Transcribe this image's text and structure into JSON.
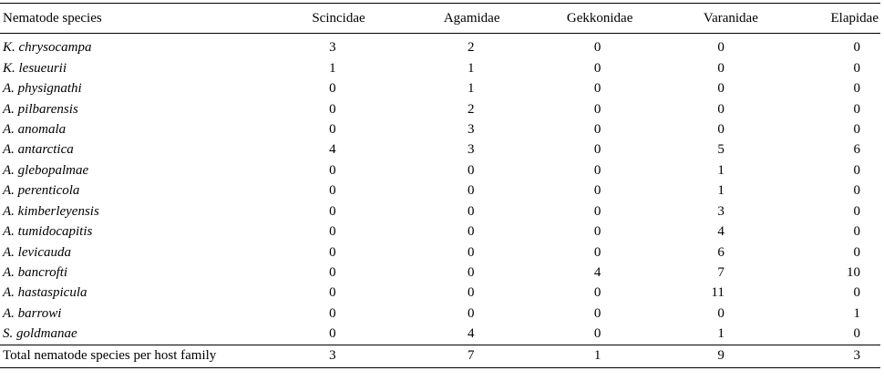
{
  "table": {
    "headers": [
      "Nematode species",
      "Scincidae",
      "Agamidae",
      "Gekkonidae",
      "Varanidae",
      "Elapidae"
    ],
    "rows": [
      {
        "species": "K. chrysocampa",
        "values": [
          "3",
          "2",
          "0",
          "0",
          "0"
        ]
      },
      {
        "species": "K. lesueurii",
        "values": [
          "1",
          "1",
          "0",
          "0",
          "0"
        ]
      },
      {
        "species": "A. physignathi",
        "values": [
          "0",
          "1",
          "0",
          "0",
          "0"
        ]
      },
      {
        "species": "A. pilbarensis",
        "values": [
          "0",
          "2",
          "0",
          "0",
          "0"
        ]
      },
      {
        "species": "A. anomala",
        "values": [
          "0",
          "3",
          "0",
          "0",
          "0"
        ]
      },
      {
        "species": "A. antarctica",
        "values": [
          "4",
          "3",
          "0",
          "5",
          "6"
        ]
      },
      {
        "species": "A. glebopalmae",
        "values": [
          "0",
          "0",
          "0",
          "1",
          "0"
        ]
      },
      {
        "species": "A. perenticola",
        "values": [
          "0",
          "0",
          "0",
          "1",
          "0"
        ]
      },
      {
        "species": "A. kimberleyensis",
        "values": [
          "0",
          "0",
          "0",
          "3",
          "0"
        ]
      },
      {
        "species": "A. tumidocapitis",
        "values": [
          "0",
          "0",
          "0",
          "4",
          "0"
        ]
      },
      {
        "species": "A. levicauda",
        "values": [
          "0",
          "0",
          "0",
          "6",
          "0"
        ]
      },
      {
        "species": "A. bancrofti",
        "values": [
          "0",
          "0",
          "4",
          "7",
          "10"
        ]
      },
      {
        "species": "A. hastaspicula",
        "values": [
          "0",
          "0",
          "0",
          "11",
          "0"
        ]
      },
      {
        "species": "A. barrowi",
        "values": [
          "0",
          "0",
          "0",
          "0",
          "1"
        ]
      },
      {
        "species": "S. goldmanae",
        "values": [
          "0",
          "4",
          "0",
          "1",
          "0"
        ]
      }
    ],
    "total": {
      "label": "Total nematode species per host family",
      "values": [
        "3",
        "7",
        "1",
        "9",
        "3"
      ]
    }
  }
}
